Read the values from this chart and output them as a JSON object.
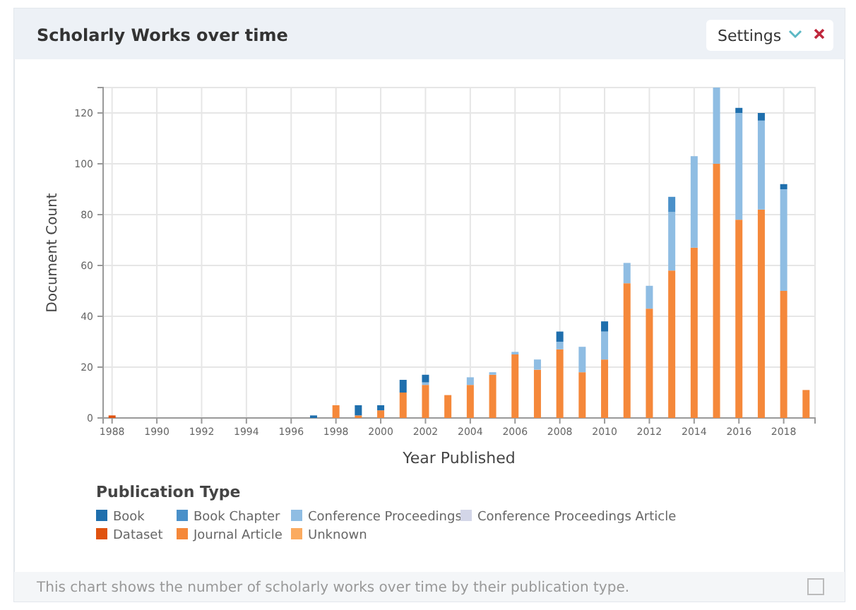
{
  "chart_data": {
    "type": "bar",
    "title": "Scholarly Works over time",
    "xlabel": "Year Published",
    "ylabel": "Document Count",
    "legend_title": "Publication Type",
    "x": [
      1988,
      1989,
      1990,
      1991,
      1992,
      1993,
      1994,
      1995,
      1996,
      1997,
      1998,
      1999,
      2000,
      2001,
      2002,
      2003,
      2004,
      2005,
      2006,
      2007,
      2008,
      2009,
      2010,
      2011,
      2012,
      2013,
      2014,
      2015,
      2016,
      2017,
      2018,
      2019
    ],
    "stacked": true,
    "series": [
      {
        "name": "Unknown",
        "color": "#fbab60",
        "values": [
          0,
          0,
          0,
          0,
          0,
          0,
          0,
          0,
          0,
          0,
          0,
          0,
          0,
          0,
          0,
          0,
          0,
          0,
          0,
          0,
          0,
          0,
          0,
          0,
          0,
          0,
          0,
          0,
          0,
          0,
          0,
          0
        ]
      },
      {
        "name": "Journal Article",
        "color": "#f5883a",
        "values": [
          0,
          0,
          0,
          0,
          0,
          0,
          0,
          0,
          0,
          0,
          5,
          1,
          3,
          10,
          13,
          9,
          13,
          17,
          25,
          19,
          27,
          18,
          23,
          53,
          43,
          58,
          67,
          100,
          78,
          82,
          50,
          11
        ]
      },
      {
        "name": "Dataset",
        "color": "#e0520f",
        "values": [
          1,
          0,
          0,
          0,
          0,
          0,
          0,
          0,
          0,
          0,
          0,
          0,
          0,
          0,
          0,
          0,
          0,
          0,
          0,
          0,
          0,
          0,
          0,
          0,
          0,
          0,
          0,
          0,
          0,
          0,
          0,
          0
        ]
      },
      {
        "name": "Conference Proceedings Article",
        "color": "#d3d6e8",
        "values": [
          0,
          0,
          0,
          0,
          0,
          0,
          0,
          0,
          0,
          0,
          0,
          0,
          0,
          0,
          0,
          0,
          0,
          0,
          0,
          0,
          0,
          0,
          0,
          0,
          0,
          0,
          0,
          0,
          0,
          0,
          0,
          0
        ]
      },
      {
        "name": "Conference Proceedings",
        "color": "#8fbde3",
        "values": [
          0,
          0,
          0,
          0,
          0,
          0,
          0,
          0,
          0,
          0,
          0,
          0,
          0,
          0,
          1,
          0,
          3,
          1,
          1,
          4,
          3,
          10,
          11,
          8,
          9,
          23,
          36,
          30,
          42,
          35,
          40,
          0
        ]
      },
      {
        "name": "Book Chapter",
        "color": "#4a90c9",
        "values": [
          0,
          0,
          0,
          0,
          0,
          0,
          0,
          0,
          0,
          0,
          0,
          0,
          0,
          0,
          0,
          0,
          0,
          0,
          0,
          0,
          0,
          0,
          0,
          0,
          0,
          6,
          0,
          0,
          0,
          0,
          0,
          0
        ]
      },
      {
        "name": "Book",
        "color": "#1f6fad",
        "values": [
          0,
          0,
          0,
          0,
          0,
          0,
          0,
          0,
          0,
          1,
          0,
          4,
          2,
          5,
          3,
          0,
          0,
          0,
          0,
          0,
          4,
          0,
          4,
          0,
          0,
          0,
          0,
          0,
          2,
          3,
          2,
          0
        ]
      }
    ],
    "xlim": [
      1987.6,
      2019.4
    ],
    "xticks": [
      1988,
      1990,
      1992,
      1994,
      1996,
      1998,
      2000,
      2002,
      2004,
      2006,
      2008,
      2010,
      2012,
      2014,
      2016,
      2018
    ],
    "ylim": [
      0,
      130
    ],
    "yticks": [
      0,
      20,
      40,
      60,
      80,
      100,
      120
    ],
    "grid": true,
    "legend": "bottom",
    "annotations": [
      "Settings",
      "This chart shows the number of scholarly works over time by their publication type."
    ]
  }
}
